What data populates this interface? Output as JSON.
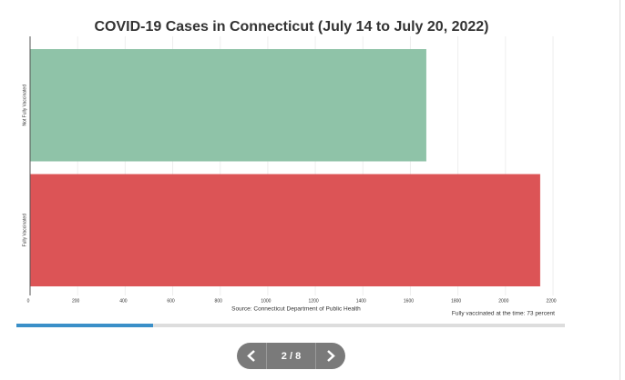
{
  "chart_data": {
    "type": "hbar",
    "title": "COVID-19 Cases in Connecticut (July 14 to July 20, 2022)",
    "categories": [
      "Not Fully Vaccinated",
      "Fully Vaccinated"
    ],
    "values": [
      1667,
      2146
    ],
    "colors": [
      "#8fc3a8",
      "#dc5456"
    ],
    "xlim": [
      0,
      2200
    ],
    "xticks": [
      0,
      200,
      400,
      600,
      800,
      1000,
      1200,
      1400,
      1600,
      1800,
      2000,
      2200
    ],
    "grid": true,
    "source": "Source: Connecticut Department of Public Health",
    "annotation": "Fully vaccinated at the time: 73 percent"
  },
  "pager": {
    "label": "2 / 8"
  }
}
